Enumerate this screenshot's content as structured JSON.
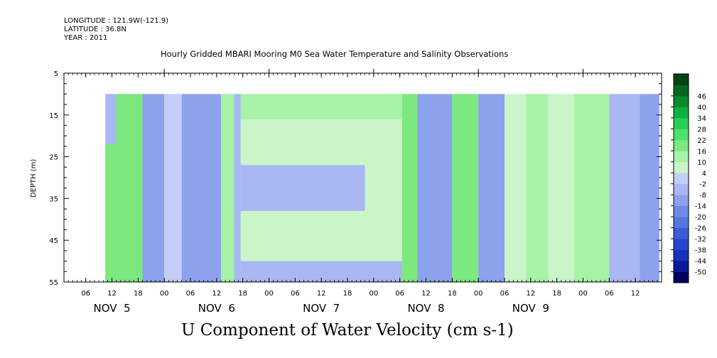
{
  "meta": {
    "longitude": "LONGITUDE : 121.9W(-121.9)",
    "latitude": "LATITUDE : 36.8N",
    "year": "YEAR : 2011"
  },
  "chart_data": {
    "type": "heatmap",
    "title": "Hourly Gridded MBARI Mooring M0 Sea Water Temperature and Salinity Observations",
    "xlabel": "U Component of Water Velocity (cm s-1)",
    "ylabel": "DEPTH (m)",
    "y_ticks": [
      "5",
      "15",
      "25",
      "35",
      "45",
      "55"
    ],
    "ylim": [
      5,
      55
    ],
    "y_inverted": true,
    "x_unit": "hours since NOV 4 00:00",
    "xlim": [
      1,
      138
    ],
    "x_ticks": [
      {
        "hour": 6,
        "label": "06"
      },
      {
        "hour": 12,
        "label": "12"
      },
      {
        "hour": 18,
        "label": "18"
      },
      {
        "hour": 24,
        "label": "00"
      },
      {
        "hour": 30,
        "label": "06"
      },
      {
        "hour": 36,
        "label": "12"
      },
      {
        "hour": 42,
        "label": "18"
      },
      {
        "hour": 48,
        "label": "00"
      },
      {
        "hour": 54,
        "label": "06"
      },
      {
        "hour": 60,
        "label": "12"
      },
      {
        "hour": 66,
        "label": "18"
      },
      {
        "hour": 72,
        "label": "00"
      },
      {
        "hour": 78,
        "label": "06"
      },
      {
        "hour": 84,
        "label": "12"
      },
      {
        "hour": 90,
        "label": "18"
      },
      {
        "hour": 96,
        "label": "00"
      },
      {
        "hour": 102,
        "label": "06"
      },
      {
        "hour": 108,
        "label": "12"
      },
      {
        "hour": 114,
        "label": "18"
      },
      {
        "hour": 120,
        "label": "00"
      },
      {
        "hour": 126,
        "label": "06"
      },
      {
        "hour": 132,
        "label": "12"
      }
    ],
    "day_labels": [
      {
        "hour": 12,
        "label": "NOV  5"
      },
      {
        "hour": 36,
        "label": "NOV  6"
      },
      {
        "hour": 60,
        "label": "NOV  7"
      },
      {
        "hour": 84,
        "label": "NOV  8"
      },
      {
        "hour": 108,
        "label": "NOV  9"
      }
    ],
    "data_x_range": [
      10.5,
      137.5
    ],
    "data_depth_range": [
      10,
      55
    ],
    "colorbar": {
      "levels": [
        "-50",
        "-44",
        "-38",
        "-32",
        "-26",
        "-20",
        "-14",
        "-8",
        "-2",
        "4",
        "10",
        "16",
        "22",
        "28",
        "34",
        "40",
        "46"
      ],
      "colors": [
        "#000060",
        "#0b1a94",
        "#1532b8",
        "#2447cc",
        "#3a5cd8",
        "#5575e0",
        "#6f8be6",
        "#8da2ec",
        "#a9b7f2",
        "#c4cdf6",
        "#c9f5c9",
        "#a6f2a6",
        "#7de87d",
        "#4fdf6f",
        "#27cf57",
        "#0fb040",
        "#0a8a2e",
        "#07661f",
        "#044414"
      ]
    },
    "bands": [
      {
        "x": [
          10.5,
          13
        ],
        "u": -4
      },
      {
        "x": [
          13,
          19
        ],
        "u": 16
      },
      {
        "x": [
          19,
          24
        ],
        "u": -10
      },
      {
        "x": [
          24,
          28
        ],
        "u": 3
      },
      {
        "x": [
          28,
          37
        ],
        "u": -12
      },
      {
        "x": [
          37,
          40
        ],
        "u": 14
      },
      {
        "x": [
          40,
          41.5
        ],
        "u": -6
      },
      {
        "x": [
          41.5,
          78.5
        ],
        "u": 5
      },
      {
        "x": [
          78.5,
          82
        ],
        "u": 16
      },
      {
        "x": [
          82,
          90
        ],
        "u": -14
      },
      {
        "x": [
          90,
          96
        ],
        "u": 20
      },
      {
        "x": [
          96,
          102
        ],
        "u": -12
      },
      {
        "x": [
          102,
          107
        ],
        "u": 4
      },
      {
        "x": [
          107,
          112
        ],
        "u": 14
      },
      {
        "x": [
          112,
          118
        ],
        "u": 4
      },
      {
        "x": [
          118,
          126
        ],
        "u": 14
      },
      {
        "x": [
          126,
          133
        ],
        "u": -6
      },
      {
        "x": [
          133,
          137.5
        ],
        "u": -10
      }
    ],
    "patches": [
      {
        "x": [
          41.5,
          78.5
        ],
        "depth": [
          10,
          16
        ],
        "u": 14
      },
      {
        "x": [
          41.5,
          70
        ],
        "depth": [
          27,
          38
        ],
        "u": -5
      },
      {
        "x": [
          41.5,
          78.5
        ],
        "depth": [
          50,
          55
        ],
        "u": -4
      },
      {
        "x": [
          10.5,
          14
        ],
        "depth": [
          22,
          55
        ],
        "u": 20
      }
    ]
  }
}
